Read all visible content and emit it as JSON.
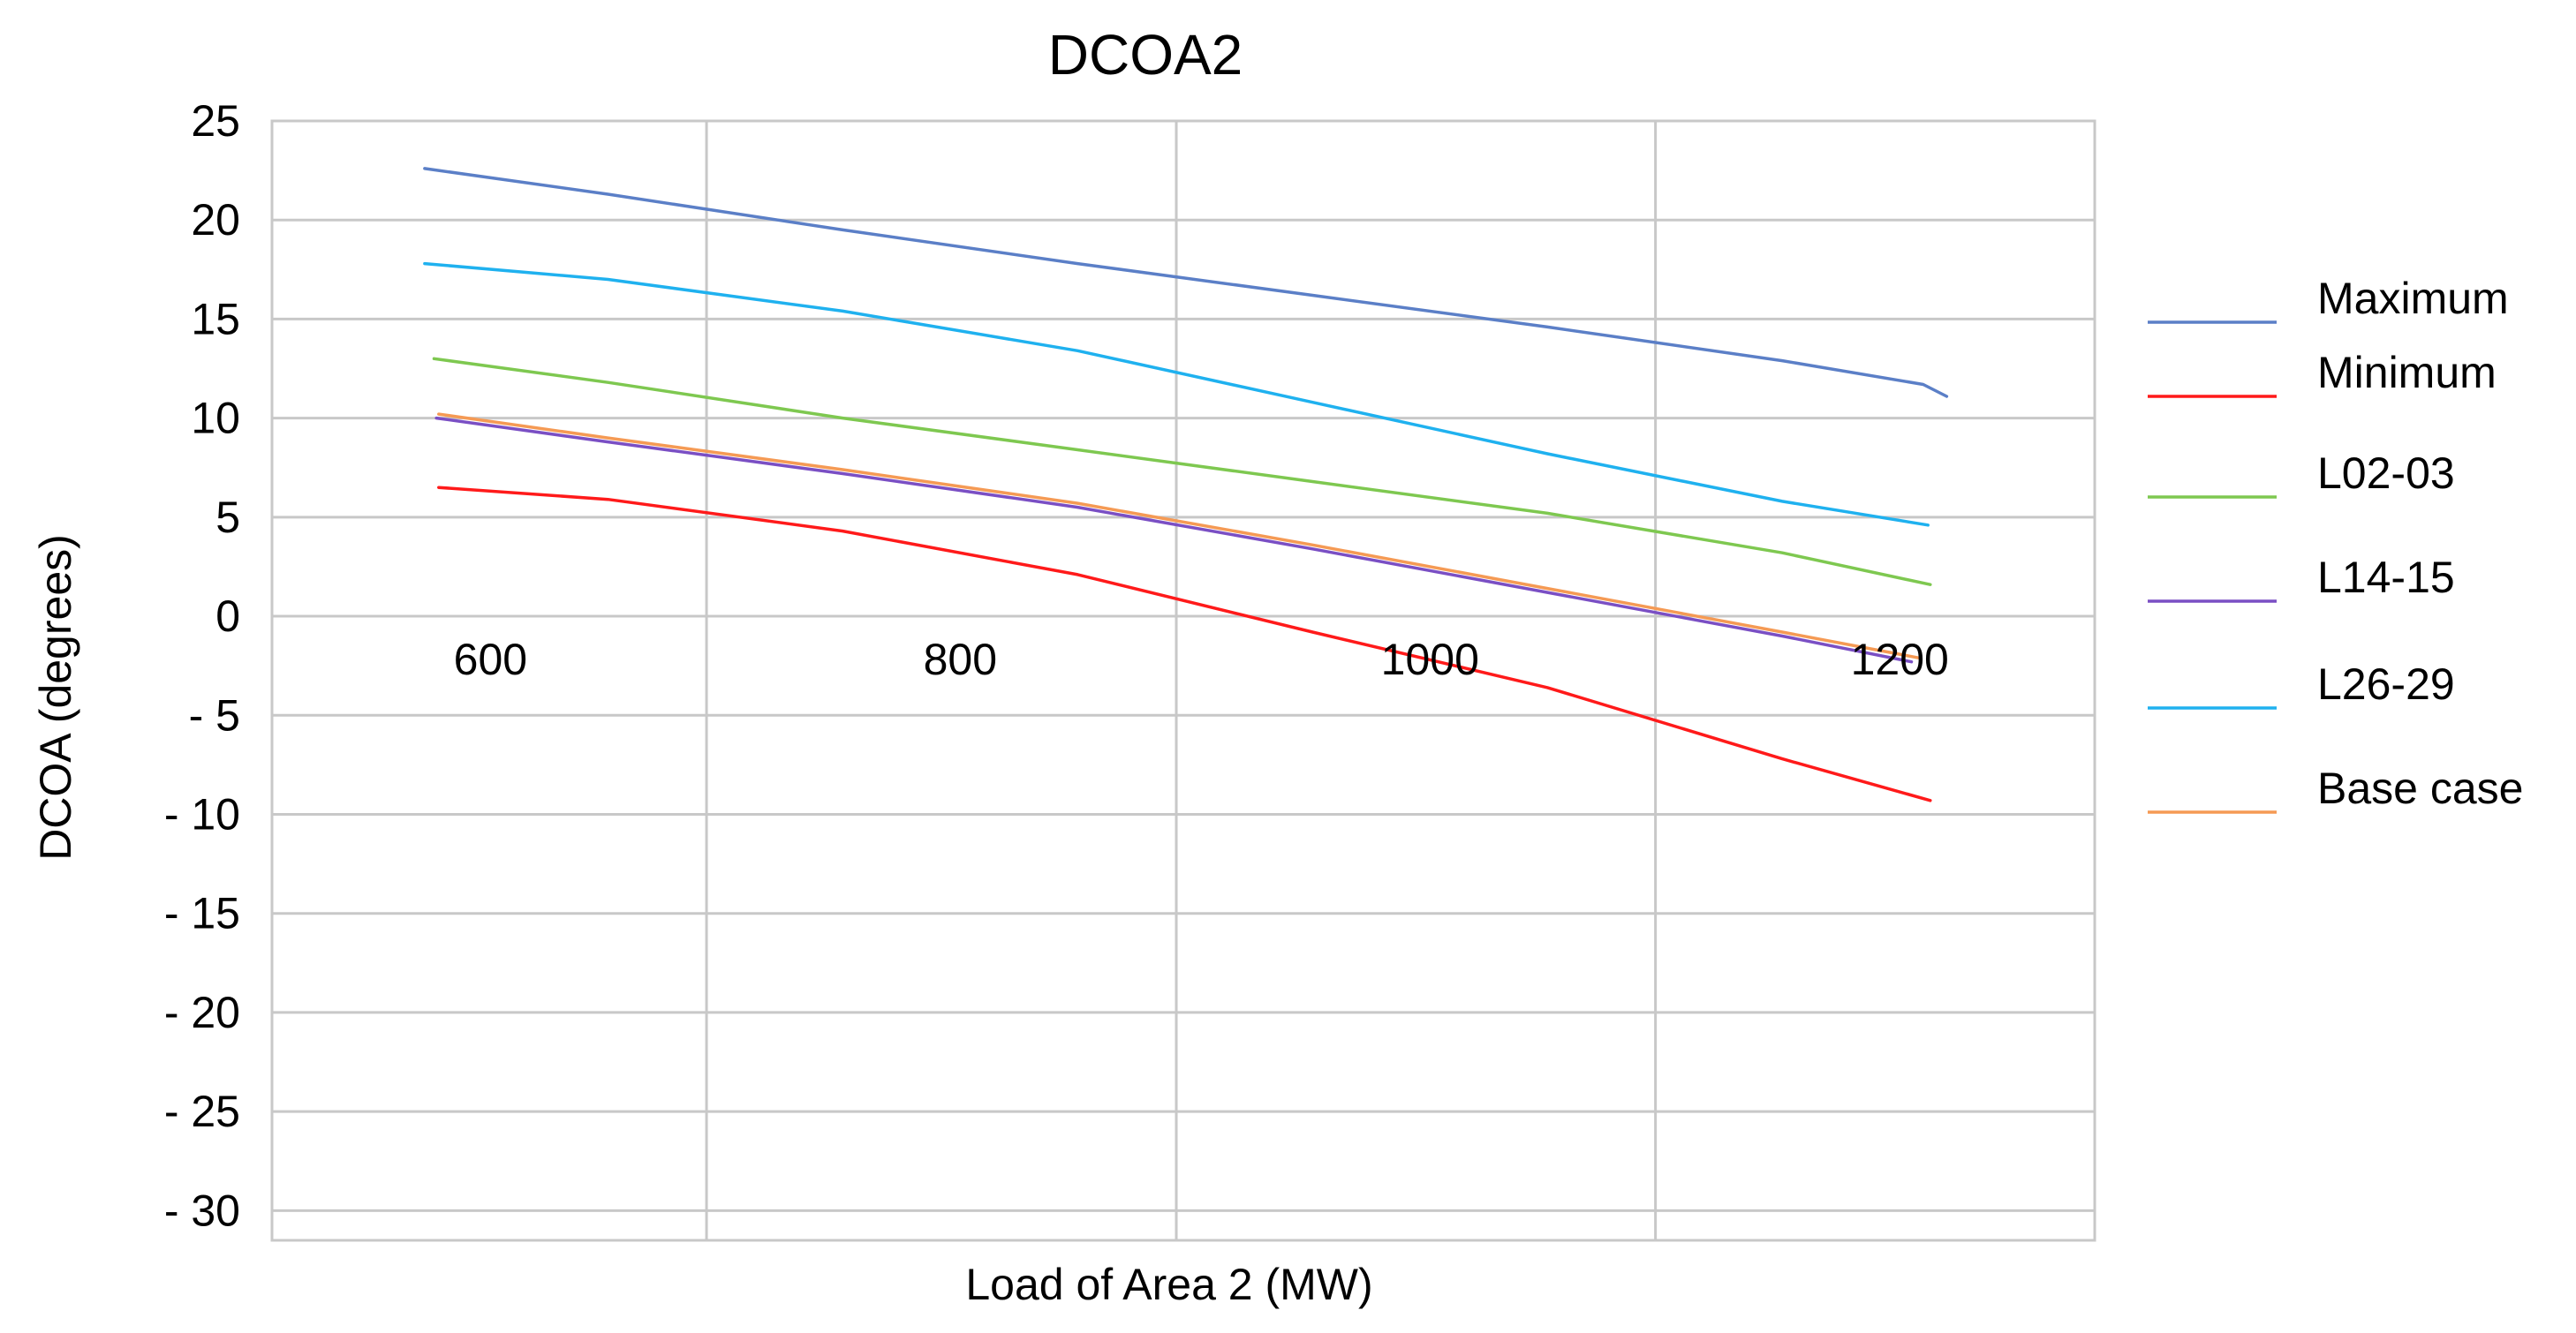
{
  "chart_data": {
    "type": "line",
    "title": "DCOA2",
    "xlabel": "Load of Area 2 (MW)",
    "ylabel": "DCOA (degrees)",
    "xlim": [
      507,
      1283
    ],
    "ylim": [
      -31.5,
      25
    ],
    "x_ticks": [
      {
        "value": 600,
        "label": "600"
      },
      {
        "value": 800,
        "label": "800"
      },
      {
        "value": 1000,
        "label": "1000"
      },
      {
        "value": 1200,
        "label": "1200"
      }
    ],
    "x_gridlines": [
      692,
      892,
      1096
    ],
    "y_ticks": [
      {
        "value": 25,
        "label": "25"
      },
      {
        "value": 20,
        "label": "20"
      },
      {
        "value": 15,
        "label": "15"
      },
      {
        "value": 10,
        "label": "10"
      },
      {
        "value": 5,
        "label": "5"
      },
      {
        "value": 0,
        "label": "0"
      },
      {
        "value": -5,
        "label": "- 5"
      },
      {
        "value": -10,
        "label": "- 10"
      },
      {
        "value": -15,
        "label": "- 15"
      },
      {
        "value": -20,
        "label": "- 20"
      },
      {
        "value": -25,
        "label": "- 25"
      },
      {
        "value": -30,
        "label": "- 30"
      }
    ],
    "series": [
      {
        "name": "Maximum",
        "color": "#5b7fc7",
        "x": [
          572,
          650,
          750,
          850,
          950,
          1050,
          1150,
          1210,
          1220
        ],
        "y": [
          22.6,
          21.3,
          19.5,
          17.8,
          16.2,
          14.6,
          12.9,
          11.7,
          11.1
        ]
      },
      {
        "name": "Minimum",
        "color": "#ff1a1a",
        "x": [
          578,
          650,
          750,
          850,
          950,
          1050,
          1150,
          1213
        ],
        "y": [
          6.5,
          5.9,
          4.3,
          2.1,
          -0.8,
          -3.6,
          -7.2,
          -9.3
        ]
      },
      {
        "name": "L02-03",
        "color": "#7ec850",
        "x": [
          576,
          650,
          750,
          850,
          950,
          1050,
          1150,
          1213
        ],
        "y": [
          13.0,
          11.8,
          10.0,
          8.4,
          6.8,
          5.2,
          3.2,
          1.6
        ]
      },
      {
        "name": "L14-15",
        "color": "#7a4fc4",
        "x": [
          577,
          650,
          750,
          850,
          950,
          1050,
          1150,
          1205
        ],
        "y": [
          10.0,
          8.8,
          7.2,
          5.5,
          3.4,
          1.2,
          -1.0,
          -2.3
        ]
      },
      {
        "name": "L26-29",
        "color": "#1fb1ef",
        "x": [
          572,
          650,
          750,
          850,
          950,
          1050,
          1150,
          1212
        ],
        "y": [
          17.8,
          17.0,
          15.4,
          13.4,
          10.8,
          8.2,
          5.8,
          4.6
        ]
      },
      {
        "name": "Base case",
        "color": "#f59a54",
        "x": [
          578,
          650,
          750,
          850,
          950,
          1050,
          1150,
          1208
        ],
        "y": [
          10.2,
          9.0,
          7.4,
          5.7,
          3.6,
          1.4,
          -0.8,
          -2.1
        ]
      }
    ],
    "legend_position": "right"
  }
}
